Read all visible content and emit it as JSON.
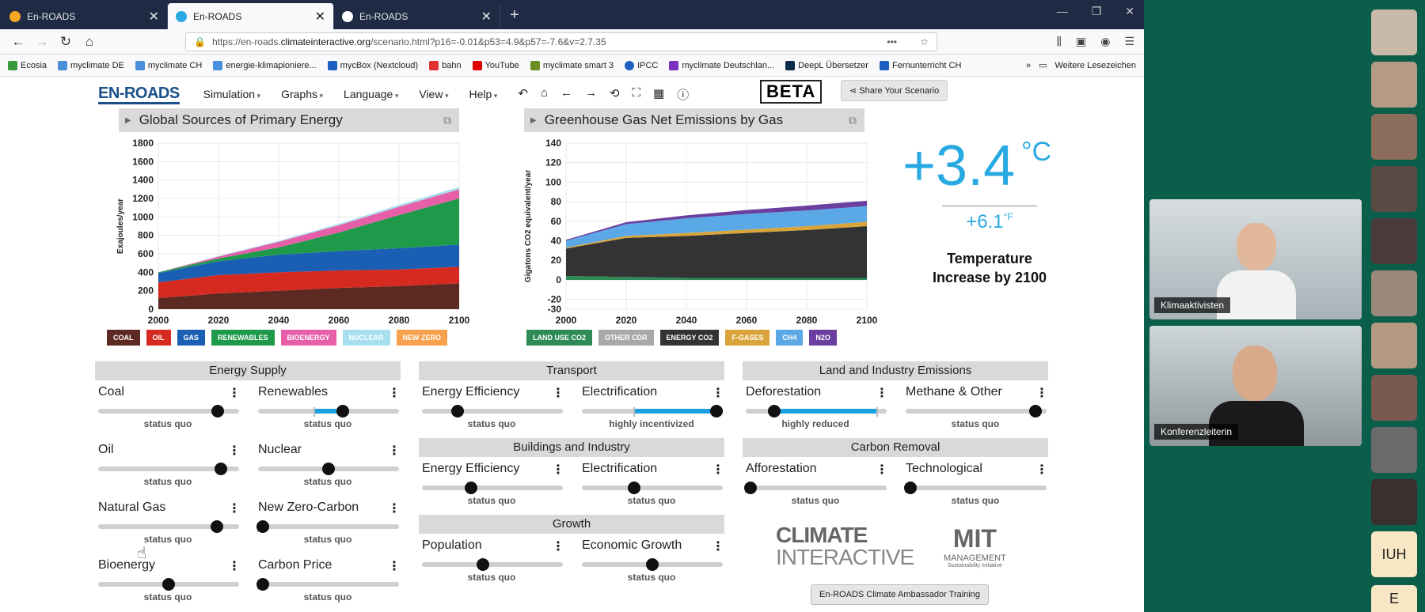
{
  "browser": {
    "tabs": [
      {
        "title": "En-ROADS",
        "active": false
      },
      {
        "title": "En-ROADS",
        "active": true
      },
      {
        "title": "En-ROADS",
        "active": false
      }
    ],
    "url_prefix": "https://en-roads.",
    "url_domain": "climateinteractive.org",
    "url_suffix": "/scenario.html?p16=-0.01&p53=4.9&p57=-7.6&v=2.7.35",
    "bookmarks": [
      "Ecosia",
      "myclimate DE",
      "myclimate CH",
      "energie-klimapioniere...",
      "mycBox (Nextcloud)",
      "bahn",
      "YouTube",
      "myclimate smart 3",
      "IPCC",
      "myclimate Deutschlan...",
      "DeepL Übersetzer",
      "Fernunterricht CH"
    ],
    "bookmarks_more": "Weitere Lesezeichen"
  },
  "app": {
    "logo": "EN-ROADS",
    "menu": [
      "Simulation",
      "Graphs",
      "Language",
      "View",
      "Help"
    ],
    "beta": "BETA",
    "share": "Share Your Scenario",
    "ambassador": "En-ROADS Climate Ambassador Training"
  },
  "chart_data": [
    {
      "type": "area",
      "title": "Global Sources of Primary Energy",
      "ylabel": "Exajoules/year",
      "xlabel": "",
      "x": [
        2000,
        2020,
        2040,
        2060,
        2080,
        2100
      ],
      "xlim": [
        2000,
        2100
      ],
      "ylim": [
        0,
        1800
      ],
      "yticks": [
        0,
        200,
        400,
        600,
        800,
        1000,
        1200,
        1400,
        1600,
        1800
      ],
      "series": [
        {
          "name": "COAL",
          "color": "#5c2a22",
          "values": [
            120,
            170,
            200,
            230,
            250,
            280
          ]
        },
        {
          "name": "OIL",
          "color": "#d6291f",
          "values": [
            170,
            200,
            200,
            190,
            180,
            180
          ]
        },
        {
          "name": "GAS",
          "color": "#1a5fb4",
          "values": [
            100,
            150,
            190,
            210,
            230,
            240
          ]
        },
        {
          "name": "RENEWABLES",
          "color": "#1f9a4a",
          "values": [
            10,
            30,
            80,
            200,
            360,
            500
          ]
        },
        {
          "name": "BIOENERGY",
          "color": "#e65fa8",
          "values": [
            0,
            20,
            60,
            80,
            90,
            100
          ]
        },
        {
          "name": "NUCLEAR",
          "color": "#a8dff0",
          "values": [
            0,
            5,
            10,
            15,
            20,
            25
          ]
        },
        {
          "name": "NEW ZERO",
          "color": "#f7a04d",
          "values": [
            0,
            0,
            0,
            0,
            0,
            0
          ]
        }
      ]
    },
    {
      "type": "area",
      "title": "Greenhouse Gas Net Emissions by Gas",
      "ylabel": "Gigatons CO2 equivalent/year",
      "xlabel": "",
      "x": [
        2000,
        2020,
        2040,
        2060,
        2080,
        2100
      ],
      "xlim": [
        2000,
        2100
      ],
      "ylim": [
        -30,
        140
      ],
      "yticks": [
        -30,
        -20,
        0,
        20,
        40,
        60,
        80,
        100,
        120,
        140
      ],
      "series": [
        {
          "name": "LAND USE CO2",
          "color": "#2e8b57",
          "values": [
            4,
            3,
            2,
            2,
            2,
            2
          ]
        },
        {
          "name": "OTHER CDR",
          "color": "#a9a9a9",
          "values": [
            0,
            0,
            0,
            0,
            0,
            0
          ]
        },
        {
          "name": "ENERGY CO2",
          "color": "#333333",
          "values": [
            28,
            40,
            43,
            46,
            49,
            53
          ]
        },
        {
          "name": "F-GASES",
          "color": "#d9a43a",
          "values": [
            1,
            2,
            3,
            3.5,
            4,
            4.5
          ]
        },
        {
          "name": "CH4",
          "color": "#5aa9e6",
          "values": [
            7,
            12,
            15,
            16,
            16,
            16
          ]
        },
        {
          "name": "N2O",
          "color": "#6a3fa0",
          "values": [
            1,
            2,
            3,
            4,
            5,
            5.5
          ]
        }
      ]
    }
  ],
  "temperature": {
    "celsius": "+3.4",
    "unit_c": "°C",
    "fahrenheit": "+6.1",
    "unit_f": "°F",
    "label": "Temperature Increase by 2100"
  },
  "sections": {
    "energy_supply": "Energy Supply",
    "transport": "Transport",
    "land": "Land and Industry Emissions",
    "buildings": "Buildings and Industry",
    "carbon_removal": "Carbon Removal",
    "growth": "Growth"
  },
  "sliders": {
    "coal": {
      "name": "Coal",
      "status": "status quo",
      "value": 0.85,
      "tick": 0.85
    },
    "renewables": {
      "name": "Renewables",
      "status": "status quo",
      "value": 0.6,
      "tick": 0.4,
      "fill": [
        0.4,
        0.6
      ]
    },
    "oil": {
      "name": "Oil",
      "status": "status quo",
      "value": 0.87,
      "tick": 0.87
    },
    "nuclear": {
      "name": "Nuclear",
      "status": "status quo",
      "value": 0.5,
      "tick": 0.5
    },
    "natural_gas": {
      "name": "Natural Gas",
      "status": "status quo",
      "value": 0.84,
      "tick": 0.84
    },
    "new_zero_carbon": {
      "name": "New Zero-Carbon",
      "status": "status quo",
      "value": 0.0,
      "tick": 0.0
    },
    "bioenergy": {
      "name": "Bioenergy",
      "status": "status quo",
      "value": 0.5,
      "tick": 0.5
    },
    "carbon_price": {
      "name": "Carbon Price",
      "status": "status quo",
      "value": 0.0,
      "tick": 0.0
    },
    "transport_efficiency": {
      "name": "Energy Efficiency",
      "status": "status quo",
      "value": 0.25,
      "tick": 0.25
    },
    "transport_electrification": {
      "name": "Electrification",
      "status": "highly incentivized",
      "value": 1.0,
      "tick": 0.37,
      "fill": [
        0.37,
        1.0
      ]
    },
    "buildings_efficiency": {
      "name": "Energy Efficiency",
      "status": "status quo",
      "value": 0.35,
      "tick": 0.35
    },
    "buildings_electrification": {
      "name": "Electrification",
      "status": "status quo",
      "value": 0.37,
      "tick": 0.37
    },
    "population": {
      "name": "Population",
      "status": "status quo",
      "value": 0.43,
      "tick": 0.43
    },
    "economic_growth": {
      "name": "Economic Growth",
      "status": "status quo",
      "value": 0.5,
      "tick": 0.5
    },
    "deforestation": {
      "name": "Deforestation",
      "status": "highly reduced",
      "value": 0.2,
      "tick": 0.93,
      "fill": [
        0.2,
        0.93
      ]
    },
    "methane_other": {
      "name": "Methane & Other",
      "status": "status quo",
      "value": 0.92,
      "tick": 0.92
    },
    "afforestation": {
      "name": "Afforestation",
      "status": "status quo",
      "value": 0.0,
      "tick": 0.0
    },
    "technological": {
      "name": "Technological",
      "status": "status quo",
      "value": 0.0,
      "tick": 0.0
    }
  },
  "logos": {
    "ci_line1": "CLIMATE",
    "ci_line2": "INTERACTIVE",
    "mit_big": "MIT",
    "mit_mid": "MANAGEMENT",
    "mit_small": "Sustainability Initiative"
  },
  "videos": {
    "participant1": "Klimaaktivisten",
    "participant2": "Konferenzleiterin",
    "initials1": "IUH",
    "initials2": "E"
  }
}
